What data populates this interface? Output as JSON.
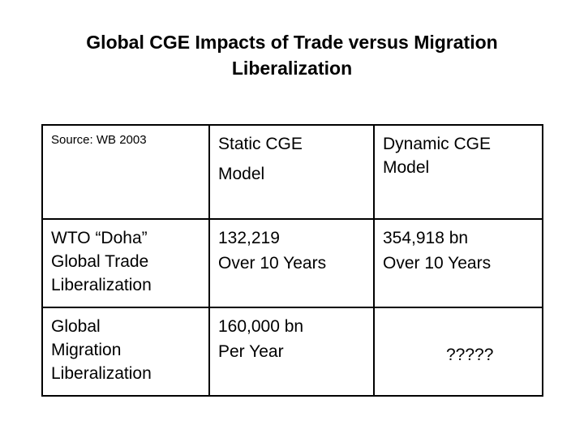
{
  "title": {
    "line1": "Global CGE Impacts of Trade versus Migration",
    "line2": "Liberalization"
  },
  "table": {
    "header": {
      "source": "Source: WB 2003",
      "static_line1": "Static CGE",
      "static_line2": "Model",
      "dynamic_line1": "Dynamic CGE",
      "dynamic_line2": "Model"
    },
    "rows": [
      {
        "label_lines": [
          "WTO “Doha”",
          "Global Trade",
          "Liberalization"
        ],
        "static_lines": [
          "132,219",
          "Over 10 Years"
        ],
        "dynamic_lines": [
          "354,918 bn",
          "Over 10 Years"
        ]
      },
      {
        "label_lines": [
          "Global",
          "Migration",
          "Liberalization"
        ],
        "static_lines": [
          "160,000 bn",
          "Per Year"
        ],
        "dynamic_value": "?????"
      }
    ]
  }
}
